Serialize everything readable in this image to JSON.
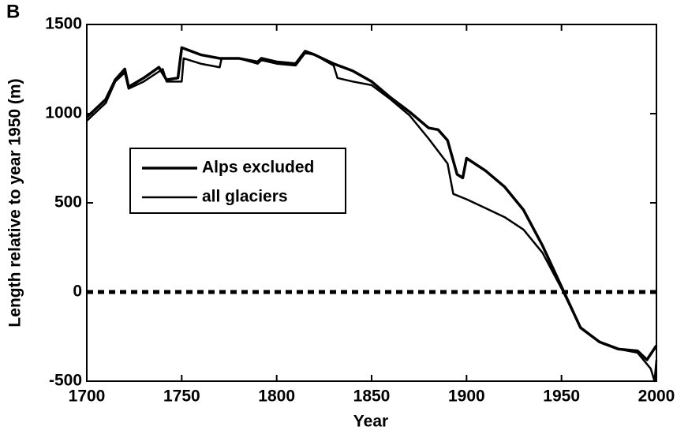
{
  "chart_data": {
    "type": "line",
    "panel_label": "B",
    "xlabel": "Year",
    "ylabel": "Length relative to year 1950 (m)",
    "xlim": [
      1700,
      2000
    ],
    "xticks": [
      1700,
      1750,
      1800,
      1850,
      1900,
      1950,
      2000
    ],
    "ylim": [
      -500,
      1500
    ],
    "yticks": [
      -500,
      0,
      500,
      1000,
      1500
    ],
    "hlines": [
      0
    ],
    "legend": "upper-left",
    "series": [
      {
        "name": "Alps excluded",
        "color": "#000000",
        "x": [
          1700,
          1705,
          1710,
          1715,
          1720,
          1722,
          1730,
          1738,
          1742,
          1748,
          1750,
          1760,
          1770,
          1780,
          1790,
          1792,
          1800,
          1810,
          1815,
          1820,
          1830,
          1840,
          1850,
          1860,
          1870,
          1880,
          1885,
          1890,
          1895,
          1898,
          1900,
          1910,
          1920,
          1930,
          1940,
          1950,
          1960,
          1970,
          1980,
          1990,
          1995,
          2000
        ],
        "values": [
          980,
          1030,
          1080,
          1190,
          1250,
          1150,
          1200,
          1260,
          1190,
          1200,
          1370,
          1330,
          1310,
          1310,
          1290,
          1310,
          1290,
          1280,
          1350,
          1330,
          1280,
          1240,
          1180,
          1090,
          1010,
          920,
          910,
          850,
          660,
          640,
          750,
          680,
          590,
          460,
          260,
          30,
          -200,
          -280,
          -320,
          -330,
          -380,
          -300
        ]
      },
      {
        "name": "all glaciers",
        "color": "#000000",
        "x": [
          1700,
          1710,
          1715,
          1720,
          1722,
          1730,
          1740,
          1742,
          1750,
          1751,
          1760,
          1770,
          1771,
          1780,
          1790,
          1792,
          1800,
          1810,
          1815,
          1820,
          1830,
          1832,
          1840,
          1850,
          1860,
          1870,
          1880,
          1890,
          1893,
          1900,
          1910,
          1920,
          1930,
          1940,
          1950,
          1960,
          1970,
          1980,
          1990,
          1997,
          1999,
          2000
        ],
        "values": [
          960,
          1060,
          1180,
          1230,
          1140,
          1180,
          1250,
          1180,
          1180,
          1310,
          1280,
          1260,
          1310,
          1310,
          1280,
          1300,
          1280,
          1270,
          1340,
          1330,
          1270,
          1200,
          1180,
          1160,
          1080,
          990,
          860,
          720,
          550,
          520,
          470,
          420,
          350,
          220,
          20,
          -200,
          -280,
          -320,
          -340,
          -430,
          -500,
          -380
        ]
      }
    ]
  }
}
